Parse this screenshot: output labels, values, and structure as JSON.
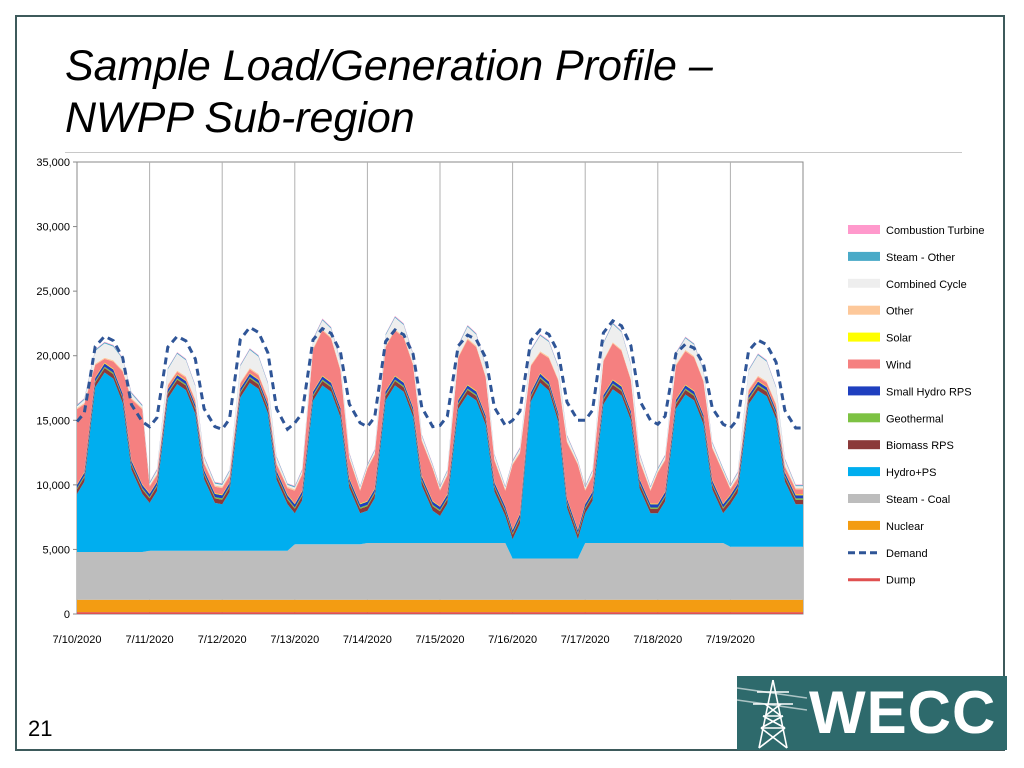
{
  "slide": {
    "title_line1": "Sample Load/Generation Profile –",
    "title_line2": "NWPP Sub-region",
    "page_number": "21",
    "logo_text": "WECC"
  },
  "chart_data": {
    "type": "area",
    "stacked": true,
    "ylim": [
      0,
      35000
    ],
    "y_ticks": [
      "0",
      "5,000",
      "10,000",
      "15,000",
      "20,000",
      "25,000",
      "30,000",
      "35,000"
    ],
    "y_tick_values": [
      0,
      5000,
      10000,
      15000,
      20000,
      25000,
      30000,
      35000
    ],
    "x_tick_labels": [
      "7/10/2020",
      "7/11/2020",
      "7/12/2020",
      "7/13/2020",
      "7/14/2020",
      "7/15/2020",
      "7/16/2020",
      "7/17/2020",
      "7/18/2020",
      "7/19/2020"
    ],
    "x_range_days": [
      0,
      10
    ],
    "grid": "vertical",
    "legend_position": "right",
    "x_days": [
      0,
      0.1,
      0.25,
      0.38,
      0.5,
      0.63,
      0.75,
      0.9
    ],
    "series": [
      {
        "name": "Dump",
        "color": "#e05050"
      },
      {
        "name": "Nuclear",
        "color": "#f39c12"
      },
      {
        "name": "Steam - Coal",
        "color": "#bdbdbd"
      },
      {
        "name": "Hydro+PS",
        "color": "#00aeef"
      },
      {
        "name": "Biomass RPS",
        "color": "#8b3a3a"
      },
      {
        "name": "Geothermal",
        "color": "#7dc243"
      },
      {
        "name": "Small Hydro RPS",
        "color": "#1f3fbf"
      },
      {
        "name": "Solar",
        "color": "#ffff00"
      },
      {
        "name": "Wind",
        "color": "#f58080"
      },
      {
        "name": "Other",
        "color": "#fdc89a"
      },
      {
        "name": "Combined Cycle",
        "color": "#eeeeee"
      },
      {
        "name": "Steam - Other",
        "color": "#4aaac8"
      },
      {
        "name": "Combustion Turbine",
        "color": "#ff99cc"
      }
    ],
    "demand": {
      "name": "Demand",
      "color": "#2f5597"
    },
    "legend": [
      "Combustion Turbine",
      "Steam - Other",
      "Combined Cycle",
      "Other",
      "Solar",
      "Wind",
      "Small Hydro RPS",
      "Geothermal",
      "Biomass RPS",
      "Hydro+PS",
      "Steam - Coal",
      "Nuclear",
      "Demand",
      "Dump"
    ],
    "days": [
      {
        "coal": 3700,
        "hydro_low": 9300,
        "hydro_high": 18700,
        "wind_low": 5800,
        "wind_high": 300,
        "cc_high": 1100,
        "demand_low": 14900,
        "demand_high": 21500
      },
      {
        "coal": 3800,
        "hydro_low": 8600,
        "hydro_high": 17800,
        "wind_low": 500,
        "wind_high": 200,
        "cc_high": 1300,
        "demand_low": 14500,
        "demand_high": 21500
      },
      {
        "coal": 3800,
        "hydro_low": 8500,
        "hydro_high": 17900,
        "wind_low": 500,
        "wind_high": 300,
        "cc_high": 1400,
        "demand_low": 14300,
        "demand_high": 22200
      },
      {
        "coal": 4300,
        "hydro_low": 7800,
        "hydro_high": 17700,
        "wind_low": 1000,
        "wind_high": 3500,
        "cc_high": 700,
        "demand_low": 14800,
        "demand_high": 22100
      },
      {
        "coal": 4400,
        "hydro_low": 8000,
        "hydro_high": 17700,
        "wind_low": 2500,
        "wind_high": 3500,
        "cc_high": 900,
        "demand_low": 14500,
        "demand_high": 22000
      },
      {
        "coal": 4400,
        "hydro_low": 7600,
        "hydro_high": 17000,
        "wind_low": 1200,
        "wind_high": 3500,
        "cc_high": 900,
        "demand_low": 14600,
        "demand_high": 21600
      },
      {
        "coal": 3200,
        "hydro_low": 5800,
        "hydro_high": 17900,
        "wind_low": 5000,
        "wind_high": 1600,
        "cc_high": 1200,
        "demand_low": 15000,
        "demand_high": 22000
      },
      {
        "coal": 4400,
        "hydro_low": 7800,
        "hydro_high": 17400,
        "wind_low": 1000,
        "wind_high": 2800,
        "cc_high": 1400,
        "demand_low": 15000,
        "demand_high": 22700
      },
      {
        "coal": 4400,
        "hydro_low": 7800,
        "hydro_high": 17000,
        "wind_low": 2400,
        "wind_high": 2600,
        "cc_high": 900,
        "demand_low": 14700,
        "demand_high": 20900
      },
      {
        "coal": 4100,
        "hydro_low": 8500,
        "hydro_high": 17300,
        "wind_low": 400,
        "wind_high": 300,
        "cc_high": 1600,
        "demand_low": 14400,
        "demand_high": 21200
      }
    ],
    "nuclear": 1100,
    "dump": 150,
    "biomass": 350,
    "geothermal": 100,
    "small_hydro": 250,
    "solar": 50,
    "other_gen": 100,
    "steam_other": 80,
    "combustion_turbine": 50
  }
}
